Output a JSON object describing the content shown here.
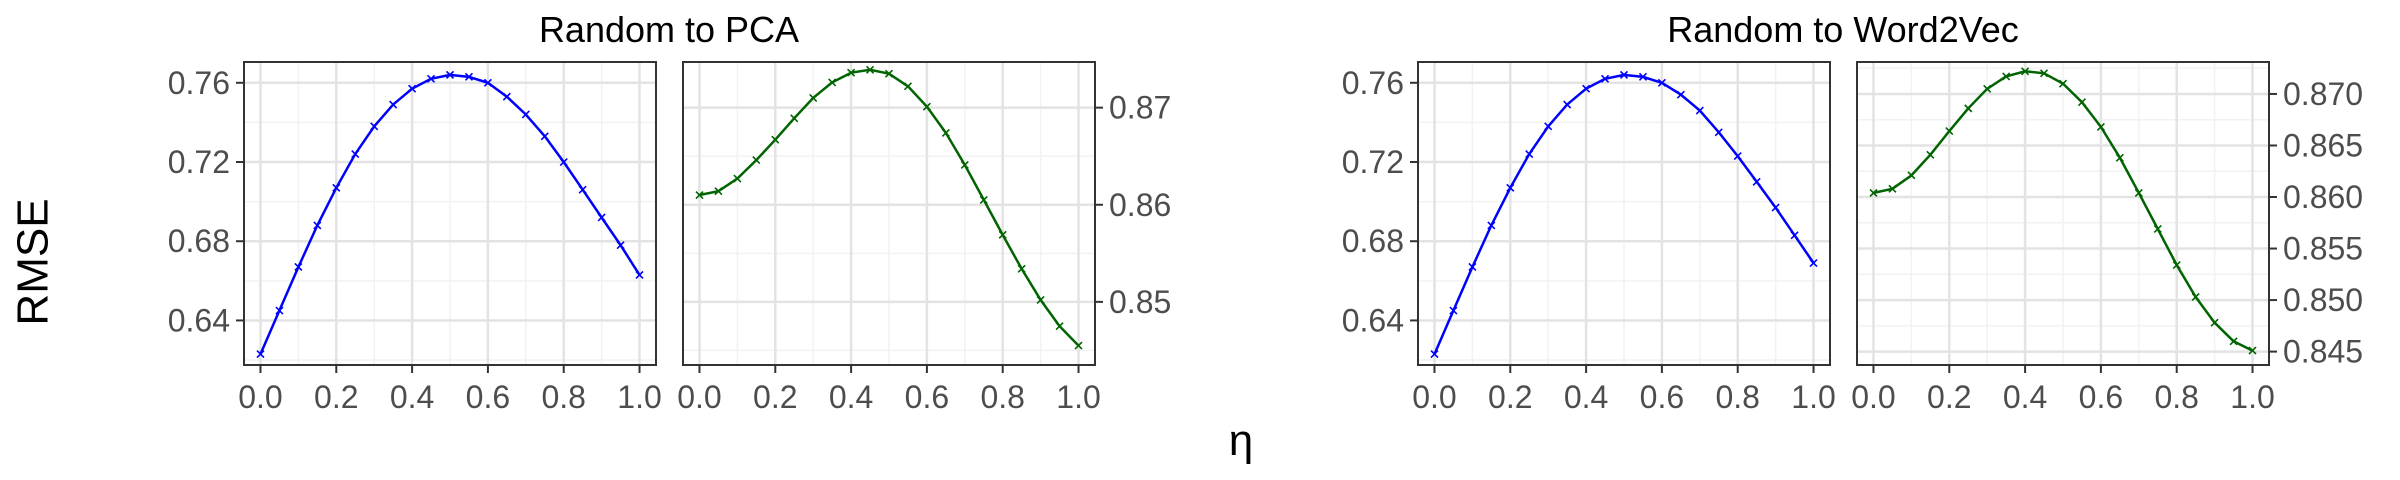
{
  "figure": {
    "ylabel": "RMSE",
    "xlabel": "η"
  },
  "colors": {
    "blue_series": "#0000ff",
    "green_series": "#006400",
    "grid_major": "#e3e3e3",
    "grid_minor": "#f2f2f2",
    "panel_border": "#333333",
    "tick_label": "#4d4d4d"
  },
  "chart_data": [
    {
      "type": "line",
      "group_title": "Random to PCA",
      "panel": "left",
      "y_axis_side": "left",
      "xlim": [
        0,
        1
      ],
      "ylim": [
        0.6175,
        0.7705
      ],
      "x_ticks": [
        "0.0",
        "0.2",
        "0.4",
        "0.6",
        "0.8",
        "1.0"
      ],
      "y_ticks": [
        0.64,
        0.68,
        0.72,
        0.76
      ],
      "y_tick_labels": [
        "0.64",
        "0.68",
        "0.72",
        "0.76"
      ],
      "grid": true,
      "series": [
        {
          "color": "#0000ff",
          "marker": "x",
          "x": [
            0.0,
            0.05,
            0.1,
            0.15,
            0.2,
            0.25,
            0.3,
            0.35,
            0.4,
            0.45,
            0.5,
            0.55,
            0.6,
            0.65,
            0.7,
            0.75,
            0.8,
            0.85,
            0.9,
            0.95,
            1.0
          ],
          "y": [
            0.623,
            0.645,
            0.667,
            0.688,
            0.707,
            0.724,
            0.738,
            0.749,
            0.757,
            0.762,
            0.764,
            0.763,
            0.76,
            0.753,
            0.744,
            0.733,
            0.72,
            0.706,
            0.692,
            0.678,
            0.663
          ]
        }
      ]
    },
    {
      "type": "line",
      "group_title": "Random to PCA",
      "panel": "right",
      "y_axis_side": "right",
      "xlim": [
        0,
        1
      ],
      "ylim": [
        0.8435,
        0.8747
      ],
      "x_ticks": [
        "0.0",
        "0.2",
        "0.4",
        "0.6",
        "0.8",
        "1.0"
      ],
      "y_ticks": [
        0.85,
        0.86,
        0.87
      ],
      "y_tick_labels": [
        "0.85",
        "0.86",
        "0.87"
      ],
      "grid": true,
      "series": [
        {
          "color": "#006400",
          "marker": "x",
          "x": [
            0.0,
            0.05,
            0.1,
            0.15,
            0.2,
            0.25,
            0.3,
            0.35,
            0.4,
            0.45,
            0.5,
            0.55,
            0.6,
            0.65,
            0.7,
            0.75,
            0.8,
            0.85,
            0.9,
            0.95,
            1.0
          ],
          "y": [
            0.861,
            0.8614,
            0.8627,
            0.8646,
            0.8667,
            0.8689,
            0.871,
            0.8726,
            0.8736,
            0.8739,
            0.8735,
            0.8722,
            0.8701,
            0.8674,
            0.8641,
            0.8605,
            0.8569,
            0.8534,
            0.8502,
            0.8475,
            0.8455
          ]
        }
      ]
    },
    {
      "type": "line",
      "group_title": "Random to Word2Vec",
      "panel": "left",
      "y_axis_side": "left",
      "xlim": [
        0,
        1
      ],
      "ylim": [
        0.6175,
        0.7705
      ],
      "x_ticks": [
        "0.0",
        "0.2",
        "0.4",
        "0.6",
        "0.8",
        "1.0"
      ],
      "y_ticks": [
        0.64,
        0.68,
        0.72,
        0.76
      ],
      "y_tick_labels": [
        "0.64",
        "0.68",
        "0.72",
        "0.76"
      ],
      "grid": true,
      "series": [
        {
          "color": "#0000ff",
          "marker": "x",
          "x": [
            0.0,
            0.05,
            0.1,
            0.15,
            0.2,
            0.25,
            0.3,
            0.35,
            0.4,
            0.45,
            0.5,
            0.55,
            0.6,
            0.65,
            0.7,
            0.75,
            0.8,
            0.85,
            0.9,
            0.95,
            1.0
          ],
          "y": [
            0.623,
            0.645,
            0.667,
            0.688,
            0.707,
            0.724,
            0.738,
            0.749,
            0.757,
            0.762,
            0.764,
            0.763,
            0.76,
            0.754,
            0.746,
            0.735,
            0.723,
            0.71,
            0.697,
            0.683,
            0.669
          ]
        }
      ]
    },
    {
      "type": "line",
      "group_title": "Random to Word2Vec",
      "panel": "right",
      "y_axis_side": "right",
      "xlim": [
        0,
        1
      ],
      "ylim": [
        0.8437,
        0.8731
      ],
      "x_ticks": [
        "0.0",
        "0.2",
        "0.4",
        "0.6",
        "0.8",
        "1.0"
      ],
      "y_ticks": [
        0.845,
        0.85,
        0.855,
        0.86,
        0.865,
        0.87
      ],
      "y_tick_labels": [
        "0.845",
        "0.850",
        "0.855",
        "0.860",
        "0.865",
        "0.870"
      ],
      "grid": true,
      "series": [
        {
          "color": "#006400",
          "marker": "x",
          "x": [
            0.0,
            0.05,
            0.1,
            0.15,
            0.2,
            0.25,
            0.3,
            0.35,
            0.4,
            0.45,
            0.5,
            0.55,
            0.6,
            0.65,
            0.7,
            0.75,
            0.8,
            0.85,
            0.9,
            0.95,
            1.0
          ],
          "y": [
            0.8604,
            0.8608,
            0.8621,
            0.8641,
            0.8664,
            0.8686,
            0.8705,
            0.8717,
            0.8722,
            0.872,
            0.871,
            0.8692,
            0.8668,
            0.8638,
            0.8604,
            0.8569,
            0.8534,
            0.8503,
            0.8478,
            0.846,
            0.8451
          ]
        }
      ]
    }
  ]
}
